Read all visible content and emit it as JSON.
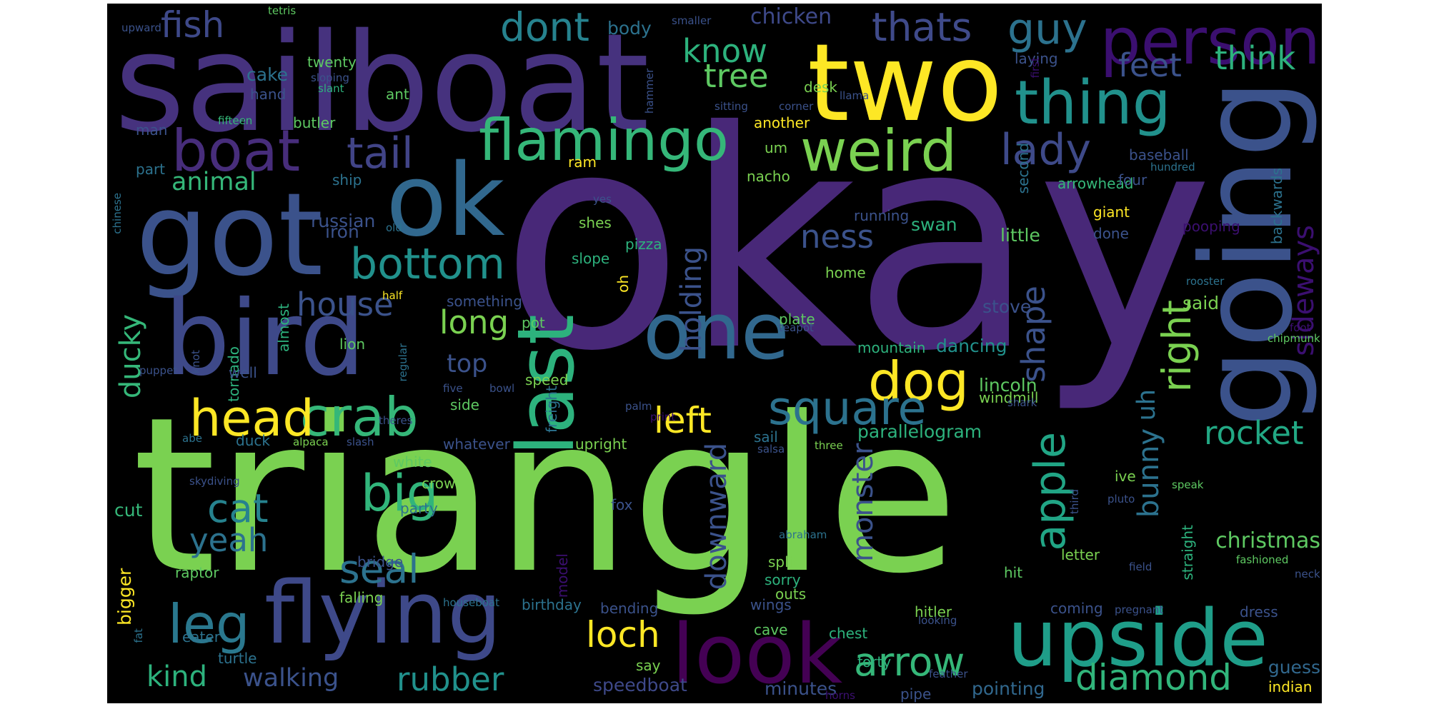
{
  "words": [
    {
      "t": "triangle",
      "c": "#7ad151"
    },
    {
      "t": "okay",
      "c": "#482878"
    },
    {
      "t": "sailboat",
      "c": "#46327e"
    },
    {
      "t": "two",
      "c": "#fde725"
    },
    {
      "t": "going",
      "c": "#3b528b"
    },
    {
      "t": "got",
      "c": "#3b528b"
    },
    {
      "t": "ok",
      "c": "#31688e"
    },
    {
      "t": "bird",
      "c": "#3e4989"
    },
    {
      "t": "one",
      "c": "#31688e"
    },
    {
      "t": "last",
      "c": "#2db27d"
    },
    {
      "t": "upside",
      "c": "#1f9e89"
    },
    {
      "t": "look",
      "c": "#440154"
    },
    {
      "t": "flying",
      "c": "#3e4989"
    },
    {
      "t": "person",
      "c": "#3b0f70"
    },
    {
      "t": "thing",
      "c": "#21918c"
    },
    {
      "t": "flamingo",
      "c": "#35b779"
    },
    {
      "t": "weird",
      "c": "#7ad151"
    },
    {
      "t": "crab",
      "c": "#35b779"
    },
    {
      "t": "boat",
      "c": "#472d7b"
    },
    {
      "t": "head",
      "c": "#fde725"
    },
    {
      "t": "leg",
      "c": "#2a788e"
    },
    {
      "t": "dog",
      "c": "#fde725"
    },
    {
      "t": "big",
      "c": "#31b57b"
    },
    {
      "t": "square",
      "c": "#2c728e"
    },
    {
      "t": "bottom",
      "c": "#21918c"
    },
    {
      "t": "tail",
      "c": "#414487"
    },
    {
      "t": "guy",
      "c": "#2c728e"
    },
    {
      "t": "dont",
      "c": "#26828e"
    },
    {
      "t": "thats",
      "c": "#3f4a8a"
    },
    {
      "t": "lady",
      "c": "#3e4a89"
    },
    {
      "t": "fish",
      "c": "#3e4989"
    },
    {
      "t": "cat",
      "c": "#26828e"
    },
    {
      "t": "apple",
      "c": "#21a585"
    },
    {
      "t": "arrow",
      "c": "#35b779"
    },
    {
      "t": "diamond",
      "c": "#31b57b"
    },
    {
      "t": "rubber",
      "c": "#21918c"
    },
    {
      "t": "loch",
      "c": "#fde725"
    },
    {
      "t": "left",
      "c": "#fde725"
    },
    {
      "t": "right",
      "c": "#7ad151"
    },
    {
      "t": "rocket",
      "c": "#22a884"
    },
    {
      "t": "seal",
      "c": "#2c728e"
    },
    {
      "t": "house",
      "c": "#3b528b"
    },
    {
      "t": "long",
      "c": "#7ad151"
    },
    {
      "t": "ness",
      "c": "#3b528b"
    },
    {
      "t": "shape",
      "c": "#3b528b"
    },
    {
      "t": "know",
      "c": "#2db27d"
    },
    {
      "t": "tree",
      "c": "#5ec962"
    },
    {
      "t": "feet",
      "c": "#3b528b"
    },
    {
      "t": "think",
      "c": "#2db27d"
    },
    {
      "t": "kind",
      "c": "#2db27d"
    },
    {
      "t": "yeah",
      "c": "#2c728e"
    },
    {
      "t": "walking",
      "c": "#3b528b"
    },
    {
      "t": "ducky",
      "c": "#35b779"
    },
    {
      "t": "monster",
      "c": "#3b528b"
    },
    {
      "t": "downward",
      "c": "#3b528b"
    },
    {
      "t": "holding",
      "c": "#3b528b"
    },
    {
      "t": "bunny",
      "c": "#2c728e"
    },
    {
      "t": "uh",
      "c": "#2c728e"
    },
    {
      "t": "sideways",
      "c": "#3b0f70"
    },
    {
      "t": "animal",
      "c": "#35b779"
    },
    {
      "t": "top",
      "c": "#3b528b"
    },
    {
      "t": "chicken",
      "c": "#3e4989"
    },
    {
      "t": "christmas",
      "c": "#5ec962"
    },
    {
      "t": "parallelogram",
      "c": "#2db27d"
    },
    {
      "t": "minutes",
      "c": "#3b528b"
    },
    {
      "t": "speedboat",
      "c": "#3e4989"
    },
    {
      "t": "pointing",
      "c": "#31688e"
    },
    {
      "t": "guess",
      "c": "#31688e"
    },
    {
      "t": "indian",
      "c": "#fde725"
    },
    {
      "t": "russian",
      "c": "#3b528b"
    },
    {
      "t": "iron",
      "c": "#3b528b"
    },
    {
      "t": "cut",
      "c": "#35b779"
    },
    {
      "t": "bigger",
      "c": "#fde725"
    },
    {
      "t": "swan",
      "c": "#2db27d"
    },
    {
      "t": "lincoln",
      "c": "#5ec962"
    },
    {
      "t": "dancing",
      "c": "#21918c"
    },
    {
      "t": "stove",
      "c": "#3b528b"
    },
    {
      "t": "said",
      "c": "#7ad151"
    },
    {
      "t": "little",
      "c": "#5ec962"
    },
    {
      "t": "running",
      "c": "#3b528b"
    },
    {
      "t": "nacho",
      "c": "#7ad151"
    },
    {
      "t": "ram",
      "c": "#fde725"
    },
    {
      "t": "arrowhead",
      "c": "#35b779"
    },
    {
      "t": "baseball",
      "c": "#3b528b"
    },
    {
      "t": "four",
      "c": "#3b528b"
    },
    {
      "t": "hundred",
      "c": "#2c728e"
    },
    {
      "t": "second",
      "c": "#2c728e"
    },
    {
      "t": "giant",
      "c": "#fde725"
    },
    {
      "t": "done",
      "c": "#3b528b"
    },
    {
      "t": "pooping",
      "c": "#3b0f70"
    },
    {
      "t": "backwards",
      "c": "#2c728e"
    },
    {
      "t": "rooster",
      "c": "#2c728e"
    },
    {
      "t": "foot",
      "c": "#3b0f70"
    },
    {
      "t": "chipmunk",
      "c": "#5ec962"
    },
    {
      "t": "body",
      "c": "#2c728e"
    },
    {
      "t": "cake",
      "c": "#2c728e"
    },
    {
      "t": "twenty",
      "c": "#5ec962"
    },
    {
      "t": "sloping",
      "c": "#3b528b"
    },
    {
      "t": "slant",
      "c": "#2db27d"
    },
    {
      "t": "ant",
      "c": "#5ec962"
    },
    {
      "t": "hand",
      "c": "#3b528b"
    },
    {
      "t": "fifteen",
      "c": "#35b779"
    },
    {
      "t": "butler",
      "c": "#5ec962"
    },
    {
      "t": "man",
      "c": "#3b528b"
    },
    {
      "t": "part",
      "c": "#2c728e"
    },
    {
      "t": "ship",
      "c": "#2c728e"
    },
    {
      "t": "chinese",
      "c": "#2c728e"
    },
    {
      "t": "old",
      "c": "#2c728e"
    },
    {
      "t": "yes",
      "c": "#3b528b"
    },
    {
      "t": "shes",
      "c": "#7ad151"
    },
    {
      "t": "pizza",
      "c": "#2db27d"
    },
    {
      "t": "slope",
      "c": "#2db27d"
    },
    {
      "t": "oh",
      "c": "#fde725"
    },
    {
      "t": "something",
      "c": "#3b528b"
    },
    {
      "t": "pot",
      "c": "#5ec962"
    },
    {
      "t": "almost",
      "c": "#2db27d"
    },
    {
      "t": "tornado",
      "c": "#2db27d"
    },
    {
      "t": "well",
      "c": "#3b528b"
    },
    {
      "t": "knot",
      "c": "#3b528b"
    },
    {
      "t": "puppet",
      "c": "#3b528b"
    },
    {
      "t": "regular",
      "c": "#2c728e"
    },
    {
      "t": "five",
      "c": "#3b528b"
    },
    {
      "t": "lion",
      "c": "#5ec962"
    },
    {
      "t": "bowl",
      "c": "#3b528b"
    },
    {
      "t": "speed",
      "c": "#7ad151"
    },
    {
      "t": "side",
      "c": "#5ec962"
    },
    {
      "t": "freight",
      "c": "#2c728e"
    },
    {
      "t": "palm",
      "c": "#3b528b"
    },
    {
      "t": "print",
      "c": "#3b0f70"
    },
    {
      "t": "theres",
      "c": "#3b528b"
    },
    {
      "t": "half",
      "c": "#fde725"
    },
    {
      "t": "upright",
      "c": "#7ad151"
    },
    {
      "t": "whatever",
      "c": "#3b528b"
    },
    {
      "t": "white",
      "c": "#5ec962"
    },
    {
      "t": "crow",
      "c": "#7ad151"
    },
    {
      "t": "party",
      "c": "#2c728e"
    },
    {
      "t": "fox",
      "c": "#3b528b"
    },
    {
      "t": "model",
      "c": "#3b0f70"
    },
    {
      "t": "bridge",
      "c": "#3b528b"
    },
    {
      "t": "raptor",
      "c": "#5ec962"
    },
    {
      "t": "falling",
      "c": "#7ad151"
    },
    {
      "t": "houseboat",
      "c": "#2c728e"
    },
    {
      "t": "birthday",
      "c": "#2c728e"
    },
    {
      "t": "bending",
      "c": "#3b528b"
    },
    {
      "t": "eater",
      "c": "#2c728e"
    },
    {
      "t": "turtle",
      "c": "#2c728e"
    },
    {
      "t": "fat",
      "c": "#2c728e"
    },
    {
      "t": "duck",
      "c": "#2c728e"
    },
    {
      "t": "alpaca",
      "c": "#7ad151"
    },
    {
      "t": "slash",
      "c": "#3b528b"
    },
    {
      "t": "abe",
      "c": "#2c728e"
    },
    {
      "t": "skydiving",
      "c": "#3b528b"
    },
    {
      "t": "windmill",
      "c": "#7ad151"
    },
    {
      "t": "sail",
      "c": "#2c728e"
    },
    {
      "t": "salsa",
      "c": "#3b528b"
    },
    {
      "t": "three",
      "c": "#7ad151"
    },
    {
      "t": "ive",
      "c": "#7ad151"
    },
    {
      "t": "hit",
      "c": "#5ec962"
    },
    {
      "t": "letter",
      "c": "#7ad151"
    },
    {
      "t": "field",
      "c": "#3b528b"
    },
    {
      "t": "fashioned",
      "c": "#5ec962"
    },
    {
      "t": "neck",
      "c": "#3b528b"
    },
    {
      "t": "straight",
      "c": "#2db27d"
    },
    {
      "t": "third",
      "c": "#3b528b"
    },
    {
      "t": "speak",
      "c": "#5ec962"
    },
    {
      "t": "pluto",
      "c": "#3b528b"
    },
    {
      "t": "shark",
      "c": "#3b528b"
    },
    {
      "t": "coming",
      "c": "#3b528b"
    },
    {
      "t": "pregnant",
      "c": "#3b528b"
    },
    {
      "t": "dress",
      "c": "#3b528b"
    },
    {
      "t": "hitler",
      "c": "#7ad151"
    },
    {
      "t": "looking",
      "c": "#3b528b"
    },
    {
      "t": "chest",
      "c": "#2db27d"
    },
    {
      "t": "forty",
      "c": "#2db27d"
    },
    {
      "t": "feather",
      "c": "#3b528b"
    },
    {
      "t": "cave",
      "c": "#5ec962"
    },
    {
      "t": "wings",
      "c": "#3b528b"
    },
    {
      "t": "say",
      "c": "#7ad151"
    },
    {
      "t": "pipe",
      "c": "#3b528b"
    },
    {
      "t": "horns",
      "c": "#3b0f70"
    },
    {
      "t": "split",
      "c": "#7ad151"
    },
    {
      "t": "sorry",
      "c": "#2db27d"
    },
    {
      "t": "outs",
      "c": "#7ad151"
    },
    {
      "t": "abraham",
      "c": "#2c728e"
    },
    {
      "t": "mountain",
      "c": "#2db27d"
    },
    {
      "t": "plate",
      "c": "#5ec962"
    },
    {
      "t": "teapot",
      "c": "#3b528b"
    },
    {
      "t": "home",
      "c": "#7ad151"
    },
    {
      "t": "um",
      "c": "#7ad151"
    },
    {
      "t": "another",
      "c": "#fde725"
    },
    {
      "t": "desk",
      "c": "#7ad151"
    },
    {
      "t": "llama",
      "c": "#3b528b"
    },
    {
      "t": "corner",
      "c": "#3b528b"
    },
    {
      "t": "sitting",
      "c": "#3b528b"
    },
    {
      "t": "hammer",
      "c": "#3b528b"
    },
    {
      "t": "smaller",
      "c": "#3b528b"
    },
    {
      "t": "laying",
      "c": "#3b528b"
    },
    {
      "t": "first",
      "c": "#3b0f70"
    },
    {
      "t": "upward",
      "c": "#3b528b"
    },
    {
      "t": "tetris",
      "c": "#5ec962"
    }
  ]
}
